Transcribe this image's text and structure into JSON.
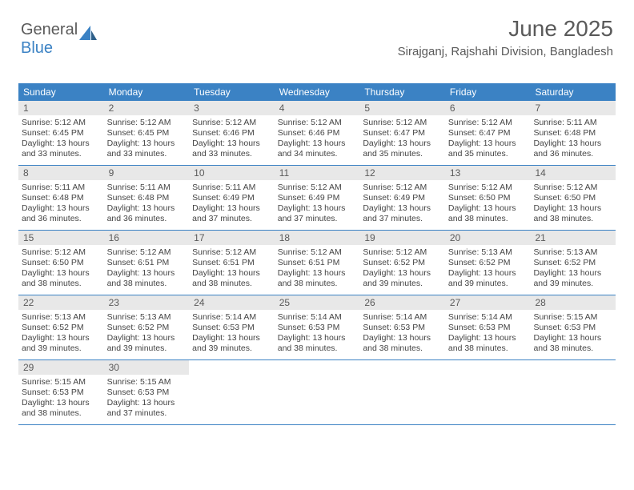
{
  "brand": {
    "part1": "General",
    "part2": "Blue"
  },
  "header": {
    "title": "June 2025",
    "subtitle": "Sirajganj, Rajshahi Division, Bangladesh"
  },
  "colors": {
    "header_bg": "#3b82c4",
    "header_fg": "#ffffff",
    "daynum_bg": "#e8e8e8",
    "text": "#5a5a5a",
    "rule": "#3b82c4"
  },
  "weekdays": [
    "Sunday",
    "Monday",
    "Tuesday",
    "Wednesday",
    "Thursday",
    "Friday",
    "Saturday"
  ],
  "days": [
    {
      "n": 1,
      "sr": "5:12 AM",
      "ss": "6:45 PM",
      "dl": "13 hours and 33 minutes."
    },
    {
      "n": 2,
      "sr": "5:12 AM",
      "ss": "6:45 PM",
      "dl": "13 hours and 33 minutes."
    },
    {
      "n": 3,
      "sr": "5:12 AM",
      "ss": "6:46 PM",
      "dl": "13 hours and 33 minutes."
    },
    {
      "n": 4,
      "sr": "5:12 AM",
      "ss": "6:46 PM",
      "dl": "13 hours and 34 minutes."
    },
    {
      "n": 5,
      "sr": "5:12 AM",
      "ss": "6:47 PM",
      "dl": "13 hours and 35 minutes."
    },
    {
      "n": 6,
      "sr": "5:12 AM",
      "ss": "6:47 PM",
      "dl": "13 hours and 35 minutes."
    },
    {
      "n": 7,
      "sr": "5:11 AM",
      "ss": "6:48 PM",
      "dl": "13 hours and 36 minutes."
    },
    {
      "n": 8,
      "sr": "5:11 AM",
      "ss": "6:48 PM",
      "dl": "13 hours and 36 minutes."
    },
    {
      "n": 9,
      "sr": "5:11 AM",
      "ss": "6:48 PM",
      "dl": "13 hours and 36 minutes."
    },
    {
      "n": 10,
      "sr": "5:11 AM",
      "ss": "6:49 PM",
      "dl": "13 hours and 37 minutes."
    },
    {
      "n": 11,
      "sr": "5:12 AM",
      "ss": "6:49 PM",
      "dl": "13 hours and 37 minutes."
    },
    {
      "n": 12,
      "sr": "5:12 AM",
      "ss": "6:49 PM",
      "dl": "13 hours and 37 minutes."
    },
    {
      "n": 13,
      "sr": "5:12 AM",
      "ss": "6:50 PM",
      "dl": "13 hours and 38 minutes."
    },
    {
      "n": 14,
      "sr": "5:12 AM",
      "ss": "6:50 PM",
      "dl": "13 hours and 38 minutes."
    },
    {
      "n": 15,
      "sr": "5:12 AM",
      "ss": "6:50 PM",
      "dl": "13 hours and 38 minutes."
    },
    {
      "n": 16,
      "sr": "5:12 AM",
      "ss": "6:51 PM",
      "dl": "13 hours and 38 minutes."
    },
    {
      "n": 17,
      "sr": "5:12 AM",
      "ss": "6:51 PM",
      "dl": "13 hours and 38 minutes."
    },
    {
      "n": 18,
      "sr": "5:12 AM",
      "ss": "6:51 PM",
      "dl": "13 hours and 38 minutes."
    },
    {
      "n": 19,
      "sr": "5:12 AM",
      "ss": "6:52 PM",
      "dl": "13 hours and 39 minutes."
    },
    {
      "n": 20,
      "sr": "5:13 AM",
      "ss": "6:52 PM",
      "dl": "13 hours and 39 minutes."
    },
    {
      "n": 21,
      "sr": "5:13 AM",
      "ss": "6:52 PM",
      "dl": "13 hours and 39 minutes."
    },
    {
      "n": 22,
      "sr": "5:13 AM",
      "ss": "6:52 PM",
      "dl": "13 hours and 39 minutes."
    },
    {
      "n": 23,
      "sr": "5:13 AM",
      "ss": "6:52 PM",
      "dl": "13 hours and 39 minutes."
    },
    {
      "n": 24,
      "sr": "5:14 AM",
      "ss": "6:53 PM",
      "dl": "13 hours and 39 minutes."
    },
    {
      "n": 25,
      "sr": "5:14 AM",
      "ss": "6:53 PM",
      "dl": "13 hours and 38 minutes."
    },
    {
      "n": 26,
      "sr": "5:14 AM",
      "ss": "6:53 PM",
      "dl": "13 hours and 38 minutes."
    },
    {
      "n": 27,
      "sr": "5:14 AM",
      "ss": "6:53 PM",
      "dl": "13 hours and 38 minutes."
    },
    {
      "n": 28,
      "sr": "5:15 AM",
      "ss": "6:53 PM",
      "dl": "13 hours and 38 minutes."
    },
    {
      "n": 29,
      "sr": "5:15 AM",
      "ss": "6:53 PM",
      "dl": "13 hours and 38 minutes."
    },
    {
      "n": 30,
      "sr": "5:15 AM",
      "ss": "6:53 PM",
      "dl": "13 hours and 37 minutes."
    }
  ],
  "labels": {
    "sunrise": "Sunrise:",
    "sunset": "Sunset:",
    "daylight": "Daylight:"
  },
  "layout": {
    "start_weekday": 0,
    "columns": 7
  }
}
